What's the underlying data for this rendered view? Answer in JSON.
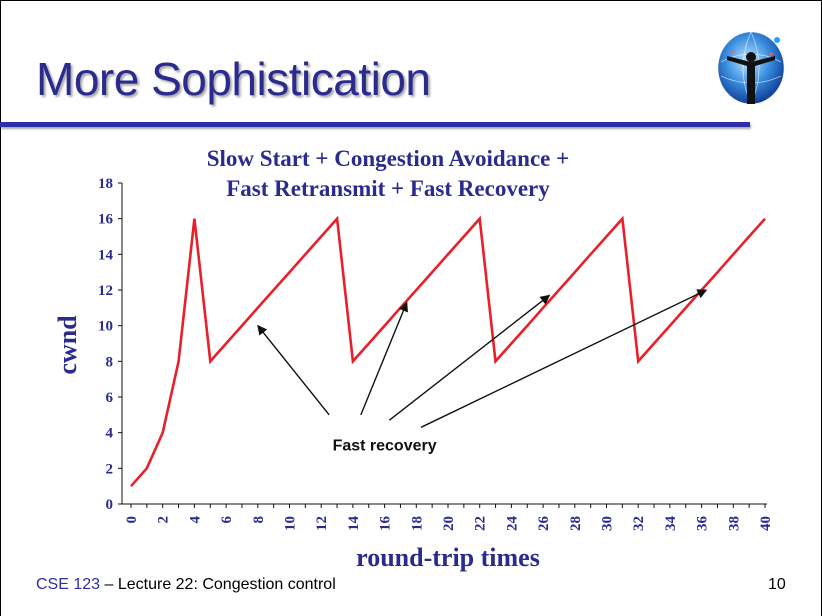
{
  "slide": {
    "title": "More Sophistication",
    "footer_course": "CSE 123",
    "footer_sep": " – ",
    "footer_lecture": "Lecture 22: Congestion control",
    "page_number": "10"
  },
  "colors": {
    "title": "#2b2b8f",
    "rule": "#2e2ea8",
    "chart_text": "#2b2b8f",
    "series": "#e8202a"
  },
  "chart_data": {
    "type": "line",
    "title_lines": [
      "Slow Start + Congestion Avoidance +",
      "Fast Retransmit + Fast Recovery"
    ],
    "xlabel": "round-trip times",
    "ylabel": "cwnd",
    "xlim": [
      0,
      40
    ],
    "ylim": [
      0,
      18
    ],
    "xticks": [
      0,
      2,
      4,
      6,
      8,
      10,
      12,
      14,
      16,
      18,
      20,
      22,
      24,
      26,
      28,
      30,
      32,
      34,
      36,
      38,
      40
    ],
    "yticks": [
      0,
      2,
      4,
      6,
      8,
      10,
      12,
      14,
      16,
      18
    ],
    "grid": false,
    "series": [
      {
        "x": [
          0,
          1,
          2,
          3,
          4,
          5,
          6,
          7,
          8,
          9,
          10,
          11,
          12,
          13,
          14,
          15,
          16,
          17,
          18,
          19,
          20,
          21,
          22,
          23,
          24,
          25,
          26,
          27,
          28,
          29,
          30,
          31,
          32,
          33,
          34,
          35,
          36,
          37,
          38,
          39,
          40
        ],
        "y": [
          1,
          2,
          4,
          8,
          16,
          8,
          9,
          10,
          11,
          12,
          13,
          14,
          15,
          16,
          8,
          9,
          10,
          11,
          12,
          13,
          14,
          15,
          16,
          8,
          9,
          10,
          11,
          12,
          13,
          14,
          15,
          16,
          8,
          9,
          10,
          11,
          12,
          13,
          14,
          15,
          16
        ]
      }
    ],
    "annotations": [
      {
        "text": "Fast recovery",
        "text_at": [
          16,
          3
        ],
        "arrows": [
          {
            "from": [
              12.5,
              5
            ],
            "to": [
              8,
              10
            ]
          },
          {
            "from": [
              14.5,
              5
            ],
            "to": [
              17.4,
              11.3
            ]
          },
          {
            "from": [
              16.3,
              4.7
            ],
            "to": [
              26.4,
              11.7
            ]
          },
          {
            "from": [
              18.3,
              4.3
            ],
            "to": [
              36.3,
              12
            ]
          }
        ]
      }
    ]
  }
}
